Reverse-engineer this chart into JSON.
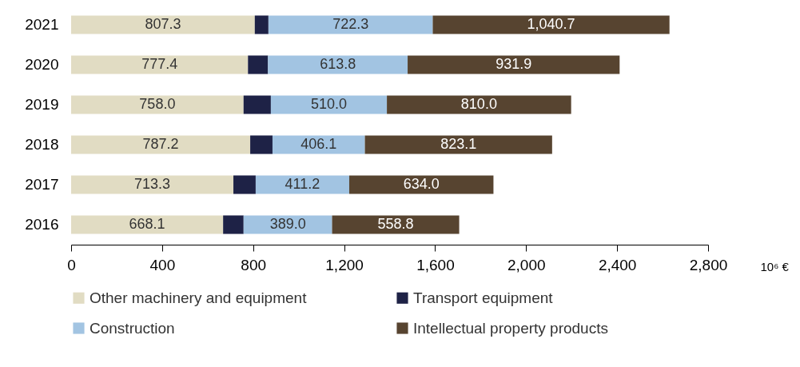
{
  "chart_data": {
    "type": "bar",
    "orientation": "horizontal",
    "stacked": true,
    "xlabel": "10⁶ €",
    "categories": [
      "2021",
      "2020",
      "2019",
      "2018",
      "2017",
      "2016"
    ],
    "series": [
      {
        "name": "Other machinery and equipment",
        "color": "#e1dcc3",
        "values": [
          807.3,
          777.4,
          758.0,
          787.2,
          713.3,
          668.1
        ],
        "value_labels": [
          "807.3",
          "777.4",
          "758.0",
          "787.2",
          "713.3",
          "668.1"
        ]
      },
      {
        "name": "Transport equipment",
        "color": "#1e2246",
        "values": [
          60,
          88,
          120,
          98,
          98,
          90
        ]
      },
      {
        "name": "Construction",
        "color": "#a2c4e2",
        "values": [
          722.3,
          613.8,
          510.0,
          406.1,
          411.2,
          389.0
        ],
        "value_labels": [
          "722.3",
          "613.8",
          "510.0",
          "406.1",
          "411.2",
          "389.0"
        ]
      },
      {
        "name": "Intellectual property products",
        "color": "#574430",
        "values": [
          1040.7,
          931.9,
          810.0,
          823.1,
          634.0,
          558.8
        ],
        "value_labels": [
          "1,040.7",
          "931.9",
          "810.0",
          "823.1",
          "634.0",
          "558.8"
        ]
      }
    ],
    "xlim": [
      0,
      2800
    ],
    "xticks": [
      0,
      400,
      800,
      {
        "value": 1200,
        "label": "1,200"
      },
      {
        "value": 1600,
        "label": "1,600"
      },
      {
        "value": 2000,
        "label": "2,000"
      },
      {
        "value": 2400,
        "label": "2,400"
      },
      {
        "value": 2800,
        "label": "2,800"
      }
    ],
    "grid": false,
    "legend": "bottom"
  }
}
